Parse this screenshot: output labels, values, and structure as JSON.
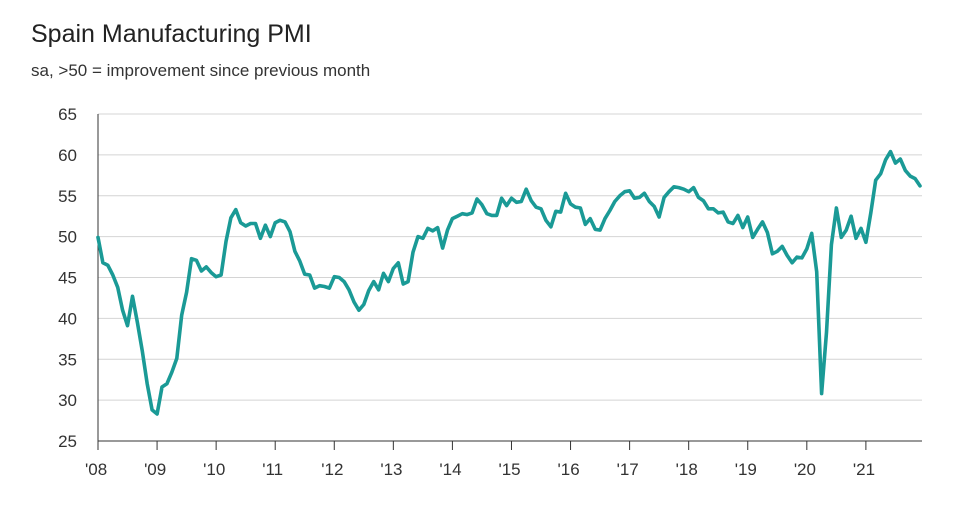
{
  "chart_data": {
    "type": "line",
    "title": "Spain Manufacturing PMI",
    "subtitle": "sa, >50 = improvement since previous month",
    "xlabel": "",
    "ylabel": "",
    "ylim": [
      25,
      65
    ],
    "yticks": [
      25,
      30,
      35,
      40,
      45,
      50,
      55,
      60,
      65
    ],
    "xlim": [
      2008.0,
      2021.95
    ],
    "xticks": [
      {
        "label": "'08",
        "value": 2008
      },
      {
        "label": "'09",
        "value": 2009
      },
      {
        "label": "'10",
        "value": 2010
      },
      {
        "label": "'11",
        "value": 2011
      },
      {
        "label": "'12",
        "value": 2012
      },
      {
        "label": "'13",
        "value": 2013
      },
      {
        "label": "'14",
        "value": 2014
      },
      {
        "label": "'15",
        "value": 2015
      },
      {
        "label": "'16",
        "value": 2016
      },
      {
        "label": "'17",
        "value": 2017
      },
      {
        "label": "'18",
        "value": 2018
      },
      {
        "label": "'19",
        "value": 2019
      },
      {
        "label": "'20",
        "value": 2020
      },
      {
        "label": "'21",
        "value": 2021
      }
    ],
    "grid": "horizontal",
    "legend": "none",
    "line_color": "#1a9a96",
    "series": [
      {
        "start": "2008-01",
        "frequency": "monthly",
        "values": [
          49.9,
          46.8,
          46.5,
          45.3,
          43.8,
          41.0,
          39.1,
          42.7,
          39.5,
          36.0,
          32.0,
          28.8,
          28.3,
          31.6,
          32.0,
          33.4,
          35.1,
          40.4,
          43.2,
          47.3,
          47.1,
          45.8,
          46.3,
          45.6,
          45.1,
          45.3,
          49.4,
          52.3,
          53.3,
          51.7,
          51.3,
          51.6,
          51.6,
          49.8,
          51.4,
          50.0,
          51.7,
          52.0,
          51.8,
          50.6,
          48.2,
          47.0,
          45.4,
          45.3,
          43.7,
          44.0,
          43.9,
          43.7,
          45.1,
          45.0,
          44.5,
          43.5,
          42.0,
          41.0,
          41.7,
          43.4,
          44.5,
          43.5,
          45.5,
          44.5,
          46.1,
          46.8,
          44.2,
          44.5,
          48.1,
          50.0,
          49.8,
          51.0,
          50.7,
          51.1,
          48.6,
          50.8,
          52.2,
          52.5,
          52.8,
          52.7,
          52.9,
          54.6,
          53.9,
          52.8,
          52.6,
          52.6,
          54.7,
          53.8,
          54.7,
          54.2,
          54.3,
          55.8,
          54.4,
          53.6,
          53.4,
          52.0,
          51.2,
          53.1,
          53.0,
          55.3,
          54.0,
          53.6,
          53.5,
          51.5,
          52.2,
          50.9,
          50.8,
          52.2,
          53.2,
          54.3,
          55.0,
          55.5,
          55.6,
          54.7,
          54.8,
          55.3,
          54.3,
          53.7,
          52.4,
          54.8,
          55.5,
          56.1,
          56.0,
          55.8,
          55.5,
          56.0,
          54.8,
          54.4,
          53.4,
          53.4,
          52.9,
          53.0,
          51.8,
          51.6,
          52.6,
          51.1,
          52.4,
          49.9,
          50.9,
          51.8,
          50.5,
          47.9,
          48.2,
          48.8,
          47.7,
          46.8,
          47.5,
          47.4,
          48.5,
          50.4,
          45.7,
          30.8,
          38.3,
          49.0,
          53.5,
          49.9,
          50.8,
          52.5,
          49.8,
          51.0,
          49.3,
          52.9,
          56.9,
          57.7,
          59.4,
          60.4,
          59.0,
          59.5,
          58.1,
          57.4,
          57.1,
          56.2
        ]
      }
    ]
  }
}
